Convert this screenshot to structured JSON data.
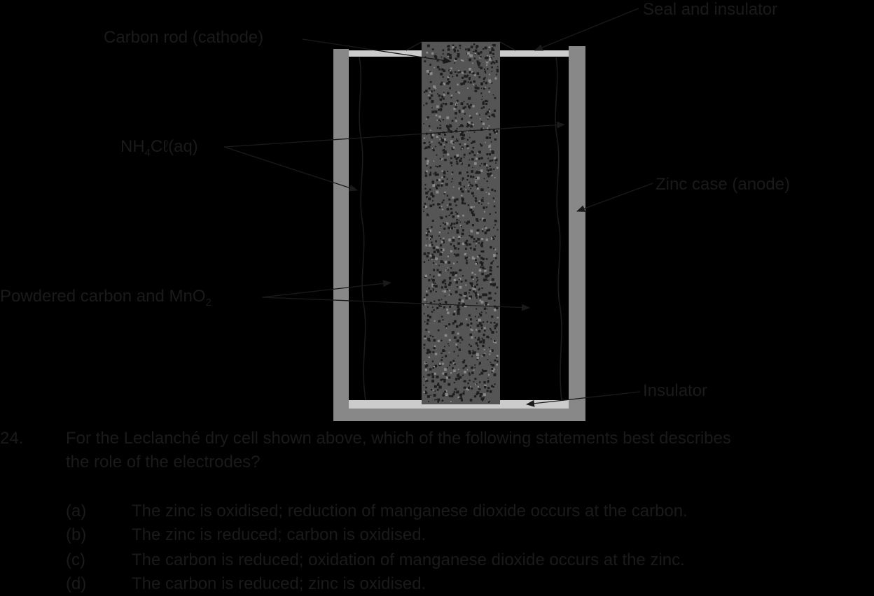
{
  "diagram": {
    "labels": {
      "carbon_rod": "Carbon rod (cathode)",
      "seal": "Seal and insulator",
      "electrolyte_main": "NH",
      "electrolyte_sub": "4",
      "electrolyte_tail": "Cℓ(aq)",
      "zinc_case": "Zinc case (anode)",
      "powder_main": "Powdered carbon and MnO",
      "powder_sub": "2",
      "insulator": "Insulator"
    },
    "colors": {
      "zinc_case": "#888888",
      "carbon_rod": "#555555",
      "seal": "#cccccc",
      "lines": "#1a1a1a"
    }
  },
  "question": {
    "number": "24.",
    "line1": "For the Leclanché dry cell shown above, which of the following statements best describes",
    "line2": "the role of the electrodes?",
    "options": [
      {
        "label": "(a)",
        "text": "The zinc is oxidised; reduction of manganese dioxide occurs at the carbon."
      },
      {
        "label": "(b)",
        "text": "The zinc is reduced; carbon is oxidised."
      },
      {
        "label": "(c)",
        "text": "The carbon is reduced; oxidation of manganese dioxide occurs at the zinc."
      },
      {
        "label": "(d)",
        "text": "The carbon is reduced; zinc is oxidised."
      }
    ]
  }
}
